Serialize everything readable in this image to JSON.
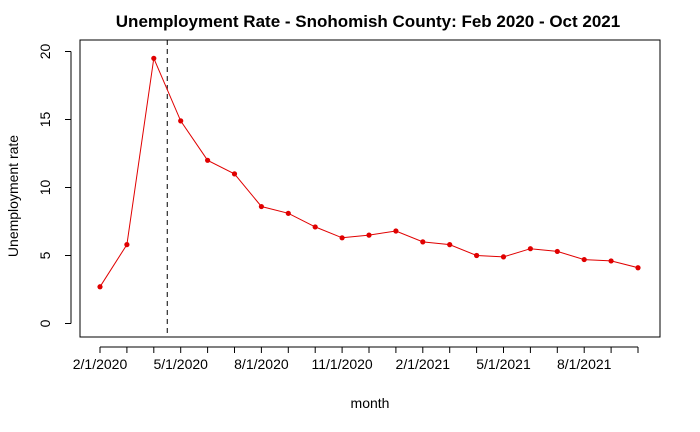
{
  "colors": {
    "series": "#e00000",
    "background": "#ffffff",
    "axis": "#000000"
  },
  "chart_data": {
    "type": "line",
    "title": "Unemployment Rate - Snohomish County: Feb 2020 - Oct 2021",
    "xlabel": "month",
    "ylabel": "Unemployment rate",
    "ylim": [
      0,
      20
    ],
    "yticks": [
      0,
      5,
      10,
      15,
      20
    ],
    "x": [
      "2020-02",
      "2020-03",
      "2020-04",
      "2020-05",
      "2020-06",
      "2020-07",
      "2020-08",
      "2020-09",
      "2020-10",
      "2020-11",
      "2020-12",
      "2021-01",
      "2021-02",
      "2021-03",
      "2021-04",
      "2021-05",
      "2021-06",
      "2021-07",
      "2021-08",
      "2021-09",
      "2021-10"
    ],
    "xtick_labels": [
      {
        "index": 0,
        "label": "2/1/2020"
      },
      {
        "index": 3,
        "label": "5/1/2020"
      },
      {
        "index": 6,
        "label": "8/1/2020"
      },
      {
        "index": 9,
        "label": "11/1/2020"
      },
      {
        "index": 12,
        "label": "2/1/2021"
      },
      {
        "index": 15,
        "label": "5/1/2021"
      },
      {
        "index": 18,
        "label": "8/1/2021"
      }
    ],
    "series": [
      {
        "values": [
          2.7,
          5.8,
          19.5,
          14.9,
          12.0,
          11.0,
          8.6,
          8.1,
          7.1,
          6.3,
          6.5,
          6.8,
          6.0,
          5.8,
          5.0,
          4.9,
          5.5,
          5.3,
          4.7,
          4.6,
          4.1
        ]
      }
    ],
    "reference_line": {
      "orientation": "vertical",
      "x": "2020-04-15",
      "style": "dashed"
    },
    "grid": false,
    "legend": "none"
  }
}
